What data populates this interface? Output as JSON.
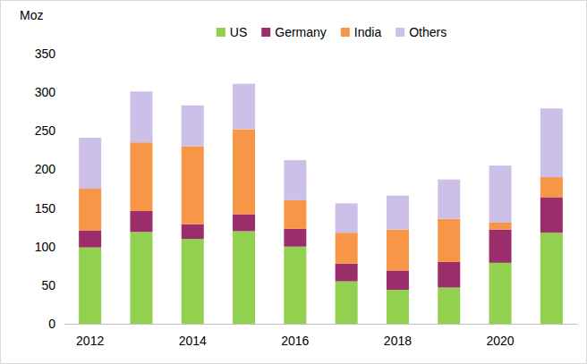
{
  "chart_data": {
    "type": "bar",
    "stacked": true,
    "grid": false,
    "legend": "top",
    "y_label": "Moz",
    "categories": [
      "2012",
      null,
      "2014",
      null,
      "2016",
      null,
      "2018",
      null,
      "2020",
      null
    ],
    "series": [
      {
        "name": "US",
        "color": "#92d050",
        "values": [
          99,
          119,
          110,
          120,
          100,
          55,
          44,
          47,
          79,
          118
        ]
      },
      {
        "name": "Germany",
        "color": "#9b2d6b",
        "values": [
          22,
          27,
          19,
          22,
          23,
          23,
          25,
          33,
          43,
          46
        ]
      },
      {
        "name": "India",
        "color": "#f79646",
        "values": [
          54,
          89,
          101,
          110,
          37,
          40,
          53,
          56,
          9,
          26
        ]
      },
      {
        "name": "Others",
        "color": "#ccc0e8",
        "values": [
          66,
          66,
          53,
          59,
          52,
          38,
          44,
          51,
          74,
          89
        ]
      }
    ],
    "ylim": [
      0,
      350
    ],
    "yticks": [
      0,
      50,
      100,
      150,
      200,
      250,
      300,
      350
    ]
  }
}
